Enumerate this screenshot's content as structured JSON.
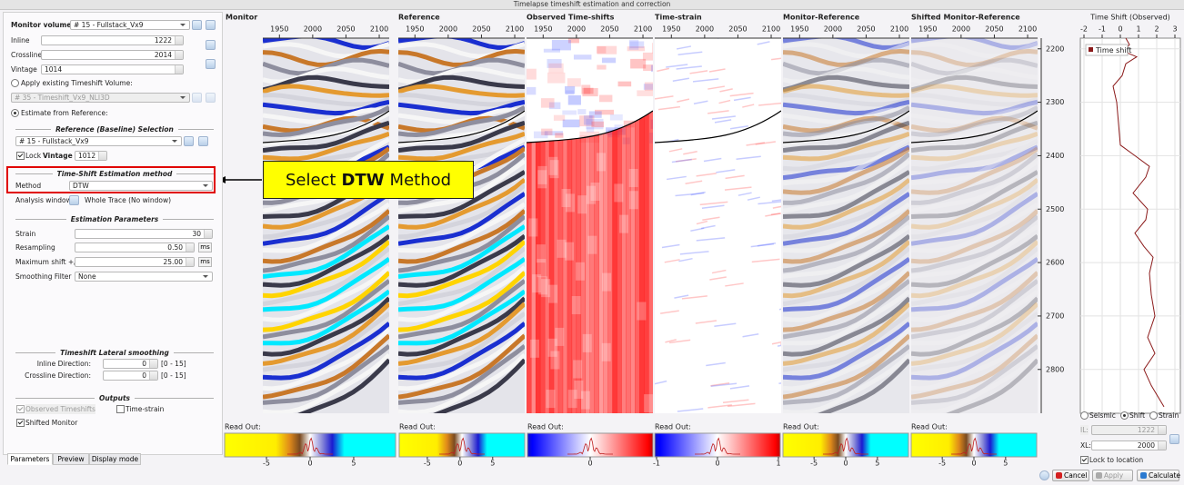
{
  "window_title": "Timelapse timeshift estimation and correction",
  "form": {
    "monitor_volume": {
      "label": "Monitor volume:",
      "value": "# 15 - Fullstack_Vx9"
    },
    "inline": {
      "label": "Inline",
      "value": 1222
    },
    "crossline": {
      "label": "Crossline",
      "value": 2014
    },
    "vintage": {
      "label": "Vintage",
      "value": 1014
    },
    "apply_existing": {
      "label": "Apply existing Timeshift Volume:",
      "value": "# 35 - Timeshift_Vx9_NLI3D",
      "selected": false
    },
    "estimate_from_reference": {
      "label": "Estimate from Reference:",
      "selected": true
    },
    "reference_section": "Reference (Baseline) Selection",
    "reference_volume": "# 15 - Fullstack_Vx9",
    "lock": {
      "label": "Lock",
      "checked": true
    },
    "reference_vintage": {
      "label": "Vintage",
      "value": 1012
    },
    "method_section": "Time-Shift Estimation method",
    "method": {
      "label": "Method",
      "value": "DTW"
    },
    "analysis_window": {
      "label": "Analysis window",
      "value": "Whole Trace (No window)"
    },
    "parameters_section": "Estimation Parameters",
    "strain": {
      "label": "Strain",
      "value": 30
    },
    "resampling": {
      "label": "Resampling",
      "value": "0.50",
      "unit": "ms"
    },
    "maximum_shift": {
      "label": "Maximum shift +/-",
      "value": "25.00",
      "unit": "ms"
    },
    "smoothing_filter": {
      "label": "Smoothing Filter",
      "value": "None"
    },
    "lateral_section": "Timeshift Lateral smoothing",
    "inline_direction": {
      "label": "Inline Direction:",
      "value": 0,
      "range": "[0 - 15]"
    },
    "crossline_direction": {
      "label": "Crossline Direction:",
      "value": 0,
      "range": "[0 - 15]"
    },
    "outputs_section": "Outputs",
    "observed_timeshifts": {
      "label": "Observed Timeshifts",
      "checked": true,
      "enabled": false
    },
    "time_strain": {
      "label": "Time-strain",
      "checked": false
    },
    "shifted_monitor": {
      "label": "Shifted Monitor",
      "checked": true
    },
    "tabs": [
      "Parameters",
      "Preview",
      "Display mode"
    ],
    "active_tab": 0
  },
  "annotation": {
    "before": "Select",
    "bold": "DTW",
    "after": "Method"
  },
  "seismic": {
    "xlim": [
      1925,
      2115
    ],
    "xticks": [
      1950,
      2000,
      2050,
      2100
    ],
    "ylim": [
      2180,
      2882
    ],
    "yticks": [
      2200,
      2300,
      2400,
      2500,
      2600,
      2700,
      2800
    ],
    "readout_label": "Read Out:",
    "panels": [
      {
        "title": "Monitor",
        "colormap": "seismic",
        "colorbar_lim": [
          -9.8,
          9.8
        ],
        "colorbar_ticks": [
          -5,
          0,
          5
        ]
      },
      {
        "title": "Reference",
        "colormap": "seismic",
        "colorbar_lim": [
          -9.3,
          9.9
        ],
        "colorbar_ticks": [
          -5,
          0,
          5
        ]
      },
      {
        "title": "Observed Time-shifts",
        "colormap": "bwr",
        "colorbar_lim": [
          -3,
          3
        ],
        "colorbar_ticks": [
          0
        ]
      },
      {
        "title": "Time-strain",
        "colormap": "bwr",
        "colorbar_lim": [
          -1.03,
          1.03
        ],
        "colorbar_ticks": [
          -1,
          0,
          1
        ]
      },
      {
        "title": "Monitor-Reference",
        "colormap": "seismic",
        "colorbar_lim": [
          -9.9,
          9.9
        ],
        "colorbar_ticks": [
          -5,
          0,
          5
        ]
      },
      {
        "title": "Shifted Monitor-Reference",
        "colormap": "seismic",
        "colorbar_lim": [
          -9.9,
          9.9
        ],
        "colorbar_ticks": [
          -5,
          0,
          5
        ]
      }
    ]
  },
  "timeshift_plot": {
    "type": "line",
    "title": "Time Shift (Observed)",
    "xlim": [
      -2.2,
      3.3
    ],
    "xticks": [
      -2,
      -1,
      0,
      1,
      2,
      3
    ],
    "grid": true,
    "series": {
      "name": "Time shift",
      "color": "#8b1a1a",
      "time": [
        2180,
        2192,
        2205,
        2215,
        2228,
        2250,
        2270,
        2300,
        2340,
        2380,
        2400,
        2420,
        2440,
        2470,
        2500,
        2520,
        2545,
        2570,
        2590,
        2620,
        2660,
        2700,
        2740,
        2770,
        2800,
        2830,
        2870
      ],
      "values": [
        0.3,
        0.5,
        0.2,
        0.9,
        0.3,
        0.1,
        -0.4,
        -0.2,
        -0.1,
        0.0,
        0.8,
        1.6,
        1.4,
        0.7,
        1.5,
        1.4,
        0.8,
        1.3,
        1.8,
        1.6,
        1.7,
        1.9,
        1.5,
        1.9,
        1.3,
        1.7,
        2.4
      ]
    }
  },
  "display": {
    "options": [
      "Seismic",
      "Shift",
      "Strain"
    ],
    "selected": 1,
    "il": {
      "label": "IL:",
      "value": 1222,
      "enabled": false
    },
    "xl": {
      "label": "XL:",
      "value": 2000
    },
    "lock_to_location": {
      "label": "Lock to location",
      "checked": true
    }
  },
  "buttons": [
    {
      "label": "Cancel"
    },
    {
      "label": "Apply",
      "enabled": false
    },
    {
      "label": "Calculate"
    }
  ]
}
